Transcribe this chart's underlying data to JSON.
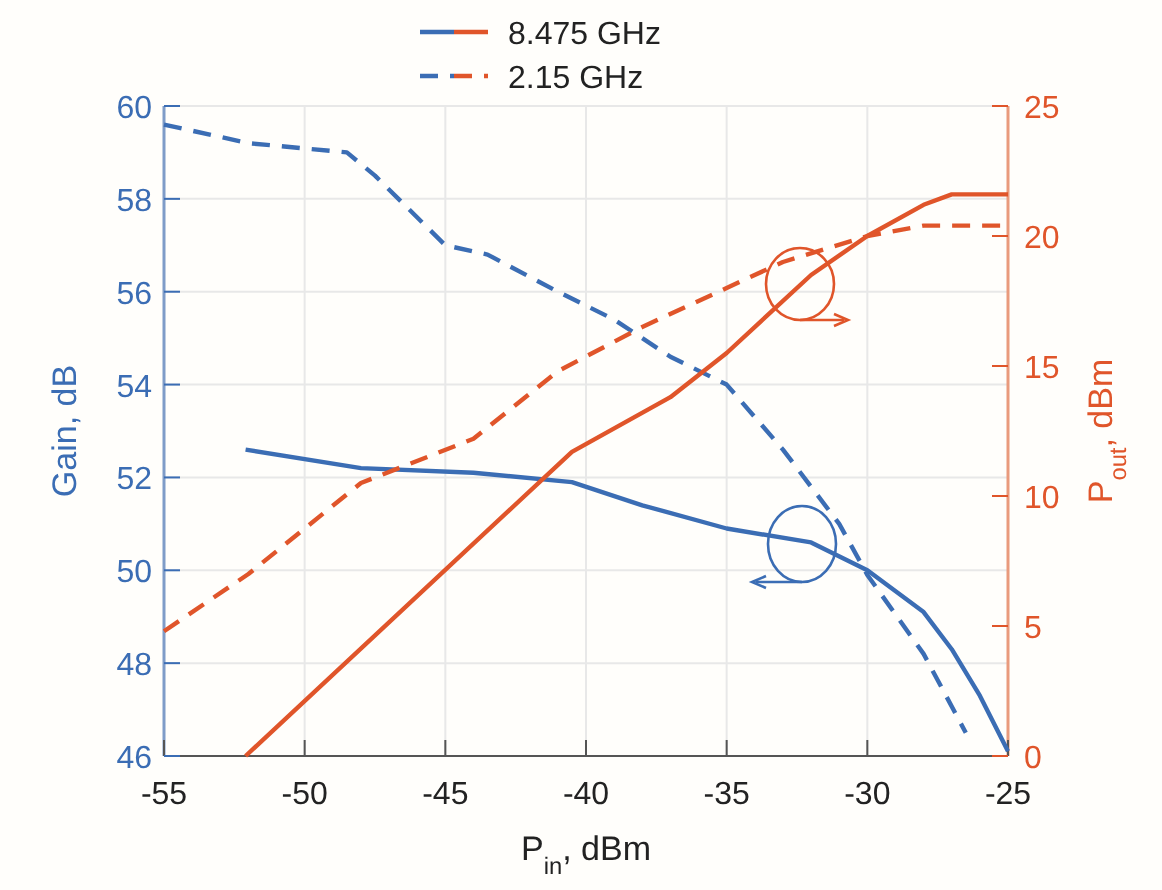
{
  "chart_data": {
    "type": "line",
    "xlabel": "P$_{in}$, dBm",
    "ylabel": "Gain, dB",
    "y2label": "P$_{out}$, dBm",
    "xlim": [
      -55,
      -25
    ],
    "xticks": [
      -55,
      -50,
      -45,
      -40,
      -35,
      -30,
      -25
    ],
    "ylim": [
      46,
      60
    ],
    "yticks": [
      46,
      48,
      50,
      52,
      54,
      56,
      58,
      60
    ],
    "y2lim": [
      0,
      25
    ],
    "y2ticks": [
      0,
      5,
      10,
      15,
      20,
      25
    ],
    "grid": true,
    "legend": "top",
    "marker": "none",
    "series": [
      {
        "name": "8.475 GHz",
        "color": "#3b6db4",
        "line_style": "solid",
        "x": [
          -52.1,
          -48,
          -44,
          -40.5,
          -38,
          -35,
          -32,
          -30,
          -28,
          -27,
          -26,
          -25
        ],
        "values": [
          52.6,
          52.2,
          52.1,
          51.9,
          51.4,
          50.9,
          50.6,
          50.0,
          49.1,
          48.3,
          47.3,
          46.1
        ]
      },
      {
        "name": "2.15 GHz",
        "color": "#3b6db4",
        "line_style": "dashed",
        "x": [
          -55,
          -52,
          -48.5,
          -47.5,
          -45,
          -43.5,
          -41,
          -39,
          -37,
          -35,
          -33,
          -31,
          -30,
          -28,
          -26.5
        ],
        "values": [
          59.6,
          59.2,
          59.0,
          58.5,
          57.0,
          56.8,
          56.0,
          55.4,
          54.6,
          54.0,
          52.6,
          51.0,
          49.9,
          48.2,
          46.5
        ]
      },
      {
        "color": "#e0552a",
        "line_style": "solid",
        "axis": "y2",
        "x": [
          -52.1,
          -40.5,
          -37,
          -35,
          -32,
          -30,
          -28,
          -27,
          -25
        ],
        "values": [
          0,
          11.7,
          13.8,
          15.5,
          18.5,
          20.0,
          21.2,
          21.6,
          21.6
        ]
      },
      {
        "color": "#e0552a",
        "line_style": "dashed",
        "axis": "y2",
        "x": [
          -55,
          -52,
          -48,
          -44,
          -41,
          -38,
          -35,
          -33,
          -30,
          -28,
          -25
        ],
        "values": [
          4.8,
          7.0,
          10.5,
          12.2,
          14.8,
          16.5,
          18.0,
          19.0,
          20.0,
          20.4,
          20.4
        ]
      }
    ]
  }
}
